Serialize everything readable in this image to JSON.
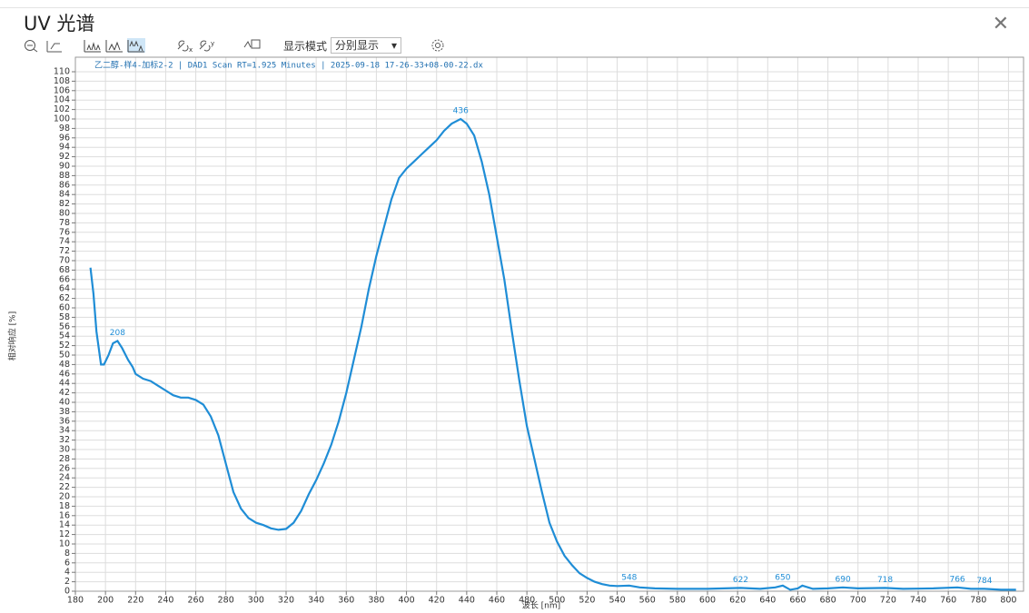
{
  "header": {
    "title": "UV 光谱",
    "mode_label": "显示模式",
    "mode_value": "分别显示"
  },
  "chart_data": {
    "type": "line",
    "title": "乙二醇-样4-加标2-2 |  DAD1 Scan RT=1.925 Minutes | 2025-09-18 17-26-33+08-00-22.dx",
    "xlabel": "波长 [nm]",
    "ylabel": "相对响应 [%]",
    "x": [
      190,
      192,
      194,
      197,
      199,
      202,
      205,
      208,
      211,
      215,
      218,
      220,
      225,
      230,
      235,
      240,
      245,
      250,
      255,
      260,
      265,
      270,
      275,
      280,
      285,
      290,
      295,
      300,
      305,
      310,
      315,
      320,
      325,
      330,
      335,
      340,
      345,
      350,
      355,
      360,
      365,
      370,
      375,
      380,
      385,
      390,
      395,
      400,
      405,
      410,
      415,
      420,
      425,
      430,
      436,
      440,
      445,
      450,
      455,
      460,
      465,
      470,
      475,
      480,
      485,
      490,
      495,
      500,
      505,
      510,
      515,
      520,
      525,
      530,
      535,
      540,
      548,
      555,
      565,
      580,
      600,
      622,
      635,
      645,
      650,
      655,
      660,
      663,
      670,
      680,
      690,
      700,
      718,
      730,
      750,
      766,
      775,
      784,
      795,
      805
    ],
    "series": [
      {
        "name": "UV",
        "color": "#1f8dd6",
        "values": [
          68.5,
          63,
          55,
          48,
          48,
          50,
          52.5,
          53,
          51.5,
          49,
          47.5,
          46,
          45,
          44.5,
          43.5,
          42.5,
          41.5,
          41,
          41,
          40.5,
          39.5,
          37,
          33,
          27,
          21,
          17.5,
          15.5,
          14.5,
          14,
          13.3,
          13,
          13.2,
          14.5,
          17,
          20.5,
          23.5,
          27,
          31,
          36,
          42,
          49,
          56,
          64,
          71,
          77,
          83,
          87.5,
          89.5,
          91,
          92.5,
          94,
          95.5,
          97.5,
          99,
          100,
          99,
          96.5,
          91,
          84,
          75,
          66,
          55,
          44.5,
          35,
          28,
          21,
          14.5,
          10.5,
          7.5,
          5.5,
          3.8,
          2.8,
          2,
          1.5,
          1.2,
          1.1,
          1.2,
          0.8,
          0.6,
          0.5,
          0.5,
          0.7,
          0.5,
          0.8,
          1.2,
          0.3,
          0.6,
          1.2,
          0.5,
          0.6,
          0.8,
          0.6,
          0.7,
          0.5,
          0.6,
          0.8,
          0.5,
          0.5,
          0.3,
          0.3
        ]
      }
    ],
    "peaks": [
      {
        "x": 208,
        "y": 53
      },
      {
        "x": 436,
        "y": 100
      },
      {
        "x": 548,
        "y": 1.2
      },
      {
        "x": 622,
        "y": 0.7
      },
      {
        "x": 650,
        "y": 1.2
      },
      {
        "x": 690,
        "y": 0.8
      },
      {
        "x": 718,
        "y": 0.7
      },
      {
        "x": 766,
        "y": 0.8
      },
      {
        "x": 784,
        "y": 0.5
      }
    ],
    "xlim": [
      180,
      810
    ],
    "ylim": [
      0,
      110
    ],
    "xticks": [
      180,
      200,
      220,
      240,
      260,
      280,
      300,
      320,
      340,
      360,
      380,
      400,
      420,
      440,
      460,
      480,
      500,
      520,
      540,
      560,
      580,
      600,
      620,
      640,
      660,
      680,
      700,
      720,
      740,
      760,
      780,
      800
    ],
    "yticks": [
      0,
      2,
      4,
      6,
      8,
      10,
      12,
      14,
      16,
      18,
      20,
      22,
      24,
      26,
      28,
      30,
      32,
      34,
      36,
      38,
      40,
      42,
      44,
      46,
      48,
      50,
      52,
      54,
      56,
      58,
      60,
      62,
      64,
      66,
      68,
      70,
      72,
      74,
      76,
      78,
      80,
      82,
      84,
      86,
      88,
      90,
      92,
      94,
      96,
      98,
      100,
      102,
      104,
      106,
      108,
      110
    ],
    "grid": true
  }
}
